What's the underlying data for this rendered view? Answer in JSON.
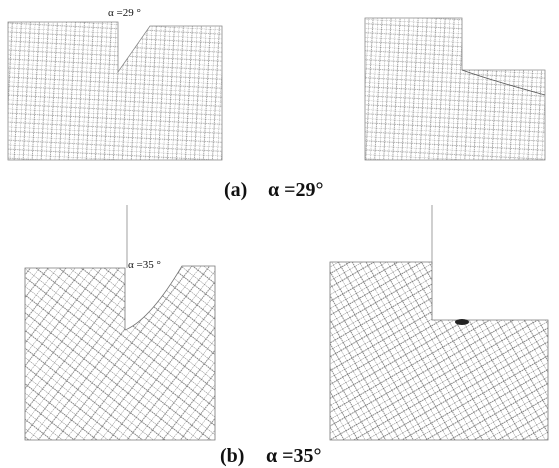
{
  "figure": {
    "panels": [
      {
        "annotation": "α =29 °",
        "caption_label": "(a)",
        "caption_text": "α =29°"
      },
      {
        "annotation": "α =35 °",
        "caption_label": "(b)",
        "caption_text": "α =35°"
      }
    ]
  }
}
